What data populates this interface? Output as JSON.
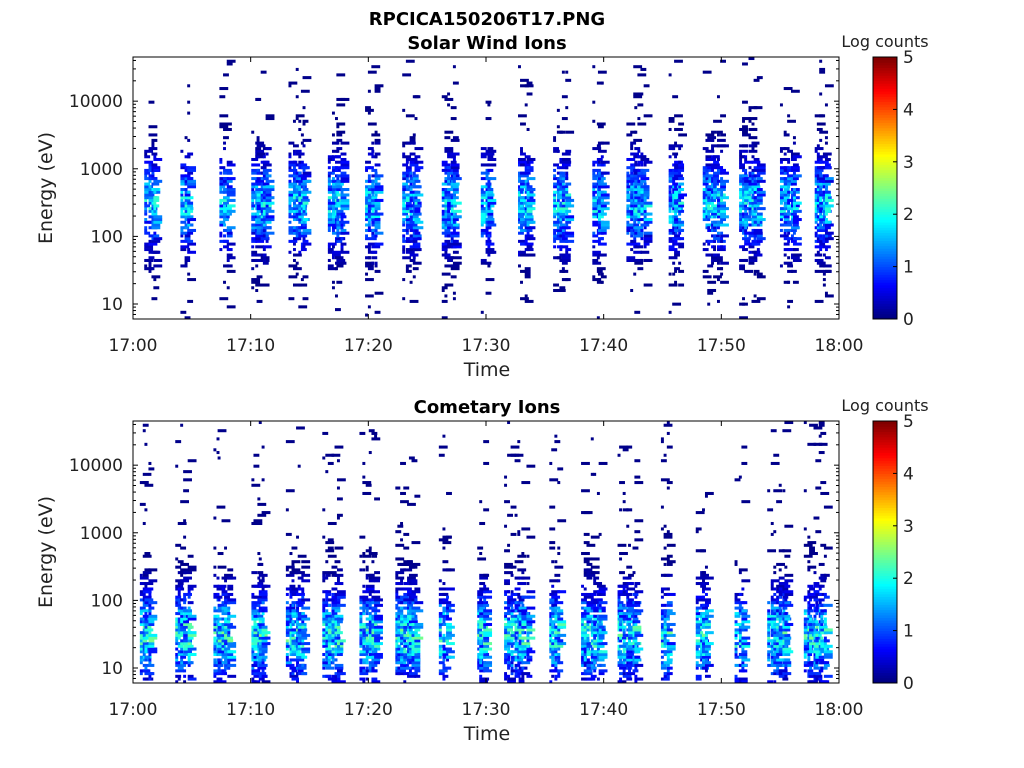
{
  "figure_title": "RPCICA150206T17.PNG",
  "chart_data": [
    {
      "type": "heatmap",
      "title": "Solar Wind Ions",
      "xlabel": "Time",
      "ylabel": "Energy (eV)",
      "x_range": [
        "17:00",
        "18:00"
      ],
      "x_ticks": [
        "17:00",
        "17:10",
        "17:20",
        "17:30",
        "17:40",
        "17:50",
        "18:00"
      ],
      "y_scale": "log",
      "y_range_ev": [
        6,
        45000
      ],
      "y_ticks": [
        {
          "value": 10,
          "label": "10"
        },
        {
          "value": 100,
          "label": "100"
        },
        {
          "value": 1000,
          "label": "1000"
        },
        {
          "value": 10000,
          "label": "10000"
        }
      ],
      "colorbar": {
        "title": "Log counts",
        "min": 0,
        "max": 5,
        "ticks": [
          "0",
          "1",
          "2",
          "3",
          "4",
          "5"
        ],
        "colormap": "jet"
      },
      "seed": 11,
      "bursts_min": [
        1.5,
        4.5,
        7.8,
        10.8,
        14.0,
        17.2,
        20.3,
        23.6,
        26.8,
        30.0,
        33.2,
        36.4,
        39.6,
        42.8,
        46.0,
        49.2,
        52.4,
        55.7,
        58.5
      ],
      "peak_ev": 300,
      "peak_level": 2.0
    },
    {
      "type": "heatmap",
      "title": "Cometary Ions",
      "xlabel": "Time",
      "ylabel": "Energy (eV)",
      "x_range": [
        "17:00",
        "18:00"
      ],
      "x_ticks": [
        "17:00",
        "17:10",
        "17:20",
        "17:30",
        "17:40",
        "17:50",
        "18:00"
      ],
      "y_scale": "log",
      "y_range_ev": [
        6,
        45000
      ],
      "y_ticks": [
        {
          "value": 10,
          "label": "10"
        },
        {
          "value": 100,
          "label": "100"
        },
        {
          "value": 1000,
          "label": "1000"
        },
        {
          "value": 10000,
          "label": "10000"
        }
      ],
      "colorbar": {
        "title": "Log counts",
        "min": 0,
        "max": 5,
        "ticks": [
          "0",
          "1",
          "2",
          "3",
          "4",
          "5"
        ],
        "colormap": "jet"
      },
      "seed": 29,
      "bursts_min": [
        1.0,
        4.2,
        7.5,
        10.6,
        13.8,
        16.8,
        20.0,
        23.2,
        26.4,
        29.6,
        32.6,
        35.8,
        39.0,
        42.0,
        45.2,
        48.4,
        51.6,
        54.8,
        58.0
      ],
      "peak_ev": 30,
      "peak_level": 2.3
    }
  ]
}
